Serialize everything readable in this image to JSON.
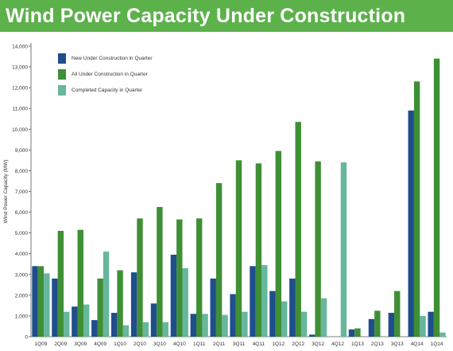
{
  "chart_data": {
    "type": "bar",
    "title": "Wind Power Capacity Under Construction",
    "xlabel": "",
    "ylabel": "Wind Power Capacity (MW)",
    "ylim": [
      0,
      14000
    ],
    "yticks": [
      0,
      1000,
      2000,
      3000,
      4000,
      5000,
      6000,
      7000,
      8000,
      9000,
      10000,
      11000,
      12000,
      13000,
      14000
    ],
    "ytick_labels": [
      "0",
      "1,000",
      "2,000",
      "3,000",
      "4,000",
      "5,000",
      "6,000",
      "7,000",
      "8,000",
      "9,000",
      "10,000",
      "11,000",
      "12,000",
      "13,000",
      "14,000"
    ],
    "grid": false,
    "legend_position": "top-left",
    "categories": [
      "1Q09",
      "2Q09",
      "3Q09",
      "4Q09",
      "1Q10",
      "2Q10",
      "3Q10",
      "4Q10",
      "1Q11",
      "2Q11",
      "3Q11",
      "4Q11",
      "1Q12",
      "2Q12",
      "3Q12",
      "4Q12",
      "1Q13",
      "2Q13",
      "3Q13",
      "4Q14",
      "1Q14"
    ],
    "series": [
      {
        "name": "New Under Construction in Quarter",
        "color": "#1f4e8c",
        "values": [
          3400,
          2800,
          1450,
          800,
          1150,
          3100,
          1600,
          3950,
          1100,
          2800,
          2050,
          3400,
          2200,
          2800,
          100,
          0,
          350,
          850,
          1150,
          10900,
          1200
        ]
      },
      {
        "name": "All Under Construction in Quarter",
        "color": "#3f8f35",
        "values": [
          3400,
          5100,
          5150,
          2800,
          3200,
          5700,
          6250,
          5650,
          5700,
          7400,
          8500,
          8350,
          8950,
          10350,
          8450,
          0,
          400,
          1250,
          2200,
          12300,
          13400
        ]
      },
      {
        "name": "Completed Capacity in Quarter",
        "color": "#66b79c",
        "values": [
          3050,
          1200,
          1550,
          4100,
          550,
          700,
          700,
          3300,
          1100,
          1050,
          1200,
          3450,
          1700,
          1200,
          1850,
          8400,
          0,
          0,
          0,
          1000,
          200
        ]
      }
    ]
  }
}
